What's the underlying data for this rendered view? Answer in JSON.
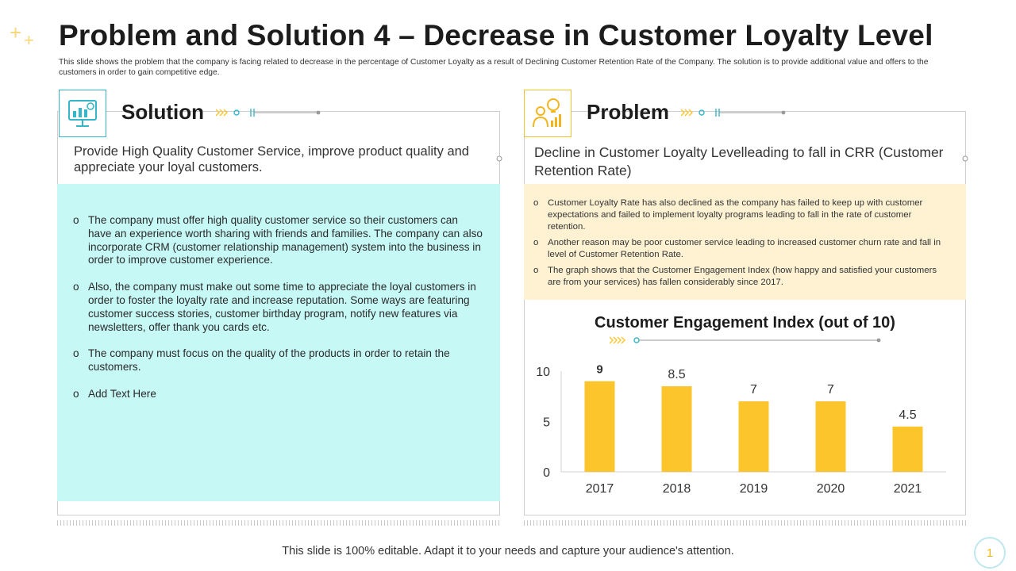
{
  "slide": {
    "title": "Problem and Solution 4 – Decrease in Customer Loyalty Level",
    "subtitle": "This slide shows the problem that the company is facing related to decrease in the percentage of Customer Loyalty as a result of Declining Customer Retention Rate of the Company. The solution is to provide additional value and offers to the customers in order to gain competitive edge.",
    "footer": "This slide is 100% editable. Adapt it to your needs and capture your audience's attention.",
    "page_number": "1",
    "colors": {
      "teal": "#35b7c9",
      "teal_fill": "#c6f8f6",
      "yellow": "#fbc52b",
      "yellow_fill": "#fef2d3"
    }
  },
  "solution": {
    "label": "Solution",
    "icon": "monitor-chart-icon",
    "intro": "Provide High Quality Customer Service, improve product quality and appreciate your loyal customers.",
    "bullet_marker": "o",
    "bullets": [
      "The company must offer high quality customer service so their customers can have an experience worth sharing with friends and families. The company can also incorporate CRM (customer relationship management) system into the business in order to improve customer experience.",
      "Also, the company must make out some time to appreciate the loyal customers in order to foster the loyalty rate and increase reputation. Some ways are featuring customer success stories, customer birthday program, notify new features via newsletters, offer thank you cards etc.",
      "The company must focus on the quality of the products in order to retain the customers.",
      "Add Text Here"
    ]
  },
  "problem": {
    "label": "Problem",
    "icon": "person-idea-chart-icon",
    "intro": "Decline in Customer Loyalty Levelleading to fall in CRR (Customer Retention Rate)",
    "bullet_marker": "o",
    "bullets": [
      "Customer Loyalty Rate has also declined as the company has failed to keep up with customer expectations and failed to implement loyalty programs leading to fall in the rate of customer retention.",
      "Another reason may be poor customer service leading to increased customer churn rate and fall in level of Customer Retention Rate.",
      "The graph shows that the Customer Engagement Index (how happy and satisfied your customers are from your services) has fallen considerably since 2017."
    ]
  },
  "chart_data": {
    "type": "bar",
    "title": "Customer Engagement Index (out of 10)",
    "categories": [
      "2017",
      "2018",
      "2019",
      "2020",
      "2021"
    ],
    "values": [
      9,
      8.5,
      7,
      7,
      4.5
    ],
    "data_labels": [
      "9",
      "8.5",
      "7",
      "7",
      "4.5"
    ],
    "yticks": [
      "0",
      "5",
      "10"
    ],
    "ylim": [
      0,
      10
    ],
    "xlabel": "",
    "ylabel": "",
    "bar_color": "#fbc52b",
    "grid": false,
    "legend": "none"
  }
}
